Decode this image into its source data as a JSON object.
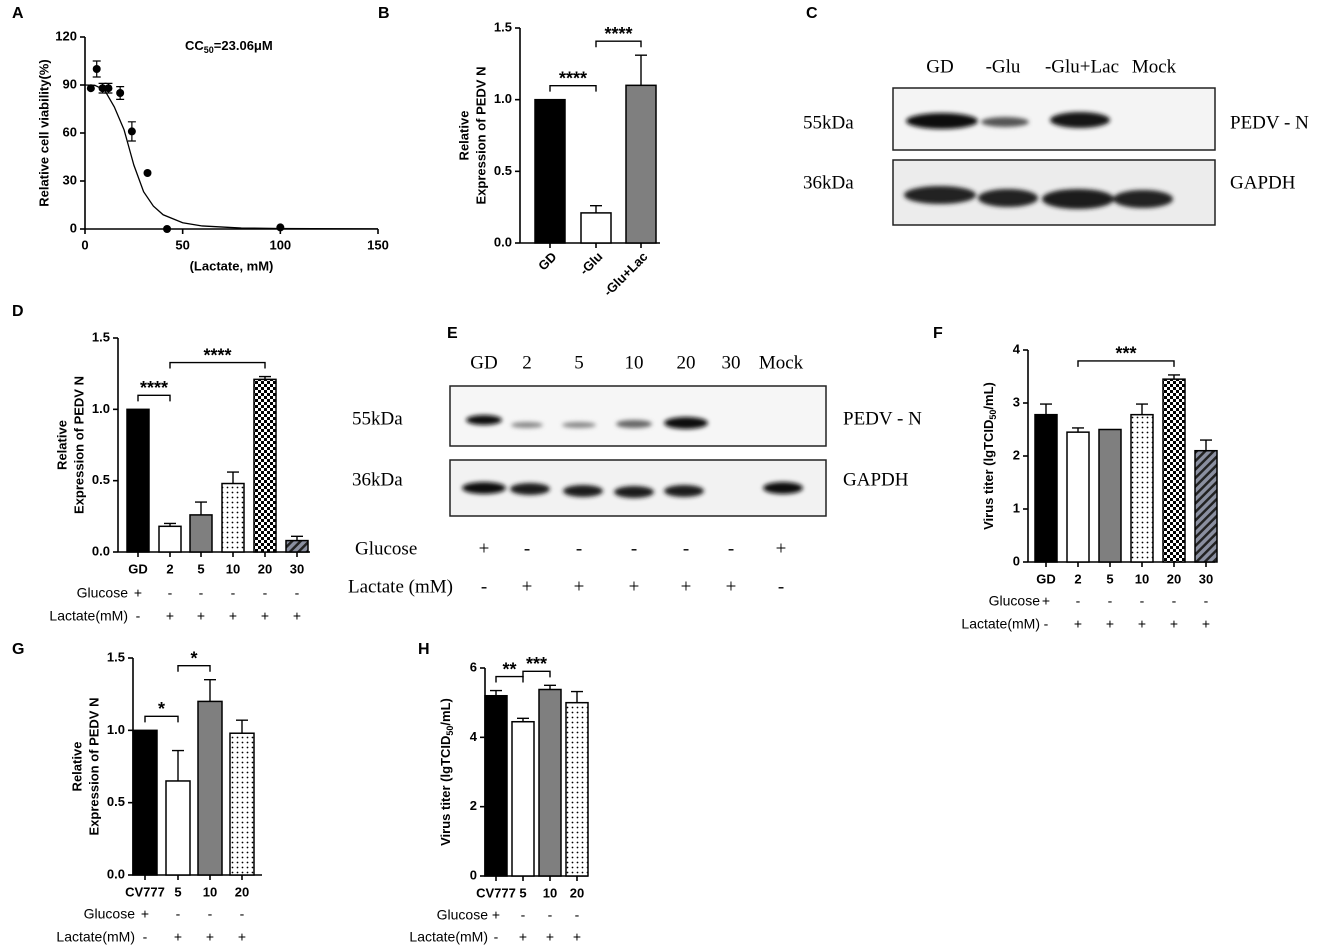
{
  "chart_data": [
    {
      "type": "scatter",
      "label": "A",
      "x": [
        3,
        6,
        9,
        12,
        18,
        24,
        32,
        42,
        100
      ],
      "y": [
        88,
        100,
        88,
        88,
        85,
        61,
        35,
        0,
        1
      ],
      "errors": [
        0,
        5,
        3,
        3,
        4,
        6,
        0,
        0,
        0
      ],
      "curve_x": [
        0,
        5,
        10,
        15,
        20,
        25,
        30,
        35,
        40,
        50,
        60,
        80,
        100,
        150
      ],
      "curve_y": [
        90,
        89.8,
        86.9,
        76.3,
        62,
        40,
        23.3,
        14.3,
        8.9,
        3.9,
        1.9,
        0.6,
        0.3,
        0.1
      ],
      "xlim": [
        0,
        150
      ],
      "xticks": [
        0,
        50,
        100,
        150
      ],
      "ylim": [
        0,
        120
      ],
      "yticks": [
        0,
        30,
        60,
        90,
        120
      ],
      "xlabel": "(Lactate, mM)",
      "ylabel": [
        "Relative cell viability(%)"
      ],
      "annotation": [
        {
          "text": "CC"
        },
        {
          "text": "50",
          "sub": true
        },
        {
          "text": "=23.06μM"
        }
      ],
      "color": "#000000"
    },
    {
      "type": "bar",
      "label": "B",
      "categories": [
        "GD",
        "-Glu",
        "-Glu+Lac"
      ],
      "rotate_labels": true,
      "values": [
        1.0,
        0.21,
        1.1
      ],
      "errors": [
        0,
        0.05,
        0.21
      ],
      "fills": [
        "black",
        "white",
        "gray"
      ],
      "ylim": [
        0,
        1.5
      ],
      "yticks": [
        {
          "value": 0,
          "label": "0.0"
        },
        0.5,
        {
          "value": 1,
          "label": "1.0"
        },
        1.5
      ],
      "ylabel": [
        "Relative",
        "Expression of PEDV N"
      ],
      "brackets": [
        {
          "from": 0,
          "to": 1,
          "text": "****"
        },
        {
          "from": 1,
          "to": 2,
          "text": "****"
        }
      ]
    },
    {
      "type": "bar",
      "label": "D",
      "categories": [
        "GD",
        "2",
        "5",
        "10",
        "20",
        "30"
      ],
      "values": [
        1.0,
        0.18,
        0.26,
        0.48,
        1.21,
        0.08
      ],
      "errors": [
        0,
        0.02,
        0.09,
        0.08,
        0.02,
        0.03
      ],
      "fills": [
        "black",
        "white",
        "gray",
        "dots",
        "checker",
        "hatch"
      ],
      "ylim": [
        0,
        1.5
      ],
      "yticks": [
        {
          "value": 0,
          "label": "0.0"
        },
        0.5,
        {
          "value": 1,
          "label": "1.0"
        },
        1.5
      ],
      "ylabel": [
        "Relative",
        "Expression of PEDV N"
      ],
      "brackets": [
        {
          "from": 0,
          "to": 1,
          "text": "****"
        },
        {
          "from": 1,
          "to": 4,
          "text": "****"
        }
      ],
      "conditions": [
        {
          "name": "Glucose",
          "values": [
            "+",
            "-",
            "-",
            "-",
            "-",
            "-"
          ]
        },
        {
          "name": "Lactate(mM)",
          "values": [
            "-",
            "+",
            "+",
            "+",
            "+",
            "+"
          ]
        }
      ]
    },
    {
      "type": "bar",
      "label": "F",
      "categories": [
        "GD",
        "2",
        "5",
        "10",
        "20",
        "30"
      ],
      "values": [
        2.78,
        2.45,
        2.5,
        2.78,
        3.45,
        2.1
      ],
      "errors": [
        0.2,
        0.08,
        0,
        0.2,
        0.08,
        0.2
      ],
      "fills": [
        "black",
        "white",
        "gray",
        "dots",
        "checker",
        "hatch"
      ],
      "ylim": [
        0,
        4
      ],
      "yticks": [
        0,
        1,
        2,
        3,
        4
      ],
      "ylabel": [
        [
          {
            "text": "Virus titer (lgTCID"
          },
          {
            "text": "50",
            "sub": true
          },
          {
            "text": "/mL)"
          }
        ]
      ],
      "brackets": [
        {
          "from": 1,
          "to": 4,
          "text": "***"
        }
      ],
      "conditions": [
        {
          "name": "Glucose",
          "values": [
            "+",
            "-",
            "-",
            "-",
            "-",
            "-"
          ]
        },
        {
          "name": "Lactate(mM)",
          "values": [
            "-",
            "+",
            "+",
            "+",
            "+",
            "+"
          ]
        }
      ]
    },
    {
      "type": "bar",
      "label": "G",
      "categories": [
        "CV777",
        "5",
        "10",
        "20"
      ],
      "values": [
        1.0,
        0.65,
        1.2,
        0.98
      ],
      "errors": [
        0,
        0.21,
        0.15,
        0.09
      ],
      "fills": [
        "black",
        "white",
        "gray",
        "dots"
      ],
      "ylim": [
        0,
        1.5
      ],
      "yticks": [
        {
          "value": 0,
          "label": "0.0"
        },
        0.5,
        {
          "value": 1,
          "label": "1.0"
        },
        1.5
      ],
      "ylabel": [
        "Relative",
        "Expression of PEDV N"
      ],
      "brackets": [
        {
          "from": 0,
          "to": 1,
          "text": "*"
        },
        {
          "from": 1,
          "to": 2,
          "text": "*"
        }
      ],
      "conditions": [
        {
          "name": "Glucose",
          "values": [
            "+",
            "-",
            "-",
            "-"
          ]
        },
        {
          "name": "Lactate(mM)",
          "values": [
            "-",
            "+",
            "+",
            "+"
          ]
        }
      ]
    },
    {
      "type": "bar",
      "label": "H",
      "categories": [
        "CV777",
        "5",
        "10",
        "20"
      ],
      "values": [
        5.2,
        4.45,
        5.38,
        5.0
      ],
      "errors": [
        0.15,
        0.1,
        0.12,
        0.32
      ],
      "fills": [
        "black",
        "white",
        "gray",
        "dots"
      ],
      "ylim": [
        0,
        6
      ],
      "yticks": [
        0,
        2,
        4,
        6
      ],
      "ylabel": [
        [
          {
            "text": "Virus titer (lgTCID"
          },
          {
            "text": "50",
            "sub": true
          },
          {
            "text": "/mL)"
          }
        ]
      ],
      "brackets": [
        {
          "from": 0,
          "to": 1,
          "text": "**"
        },
        {
          "from": 1,
          "to": 2,
          "text": "***"
        }
      ],
      "conditions": [
        {
          "name": "Glucose",
          "values": [
            "+",
            "-",
            "-",
            "-"
          ]
        },
        {
          "name": "Lactate(mM)",
          "values": [
            "-",
            "+",
            "+",
            "+"
          ]
        }
      ]
    }
  ],
  "blots": [
    {
      "label": "C",
      "lanes": [
        "GD",
        "-Glu",
        "-Glu+Lac",
        "Mock"
      ],
      "rows": [
        {
          "size": "55kDa",
          "protein": "PEDV - N"
        },
        {
          "size": "36kDa",
          "protein": "GAPDH"
        }
      ]
    },
    {
      "label": "E",
      "lanes": [
        "GD",
        "2",
        "5",
        "10",
        "20",
        "30",
        "Mock"
      ],
      "rows": [
        {
          "size": "55kDa",
          "protein": "PEDV - N"
        },
        {
          "size": "36kDa",
          "protein": "GAPDH"
        }
      ],
      "conditions": [
        {
          "name": "Glucose",
          "values": [
            "+",
            "-",
            "-",
            "-",
            "-",
            "-",
            "+"
          ]
        },
        {
          "name": "Lactate (mM)",
          "values": [
            "-",
            "+",
            "+",
            "+",
            "+",
            "+",
            "-"
          ]
        }
      ]
    }
  ]
}
